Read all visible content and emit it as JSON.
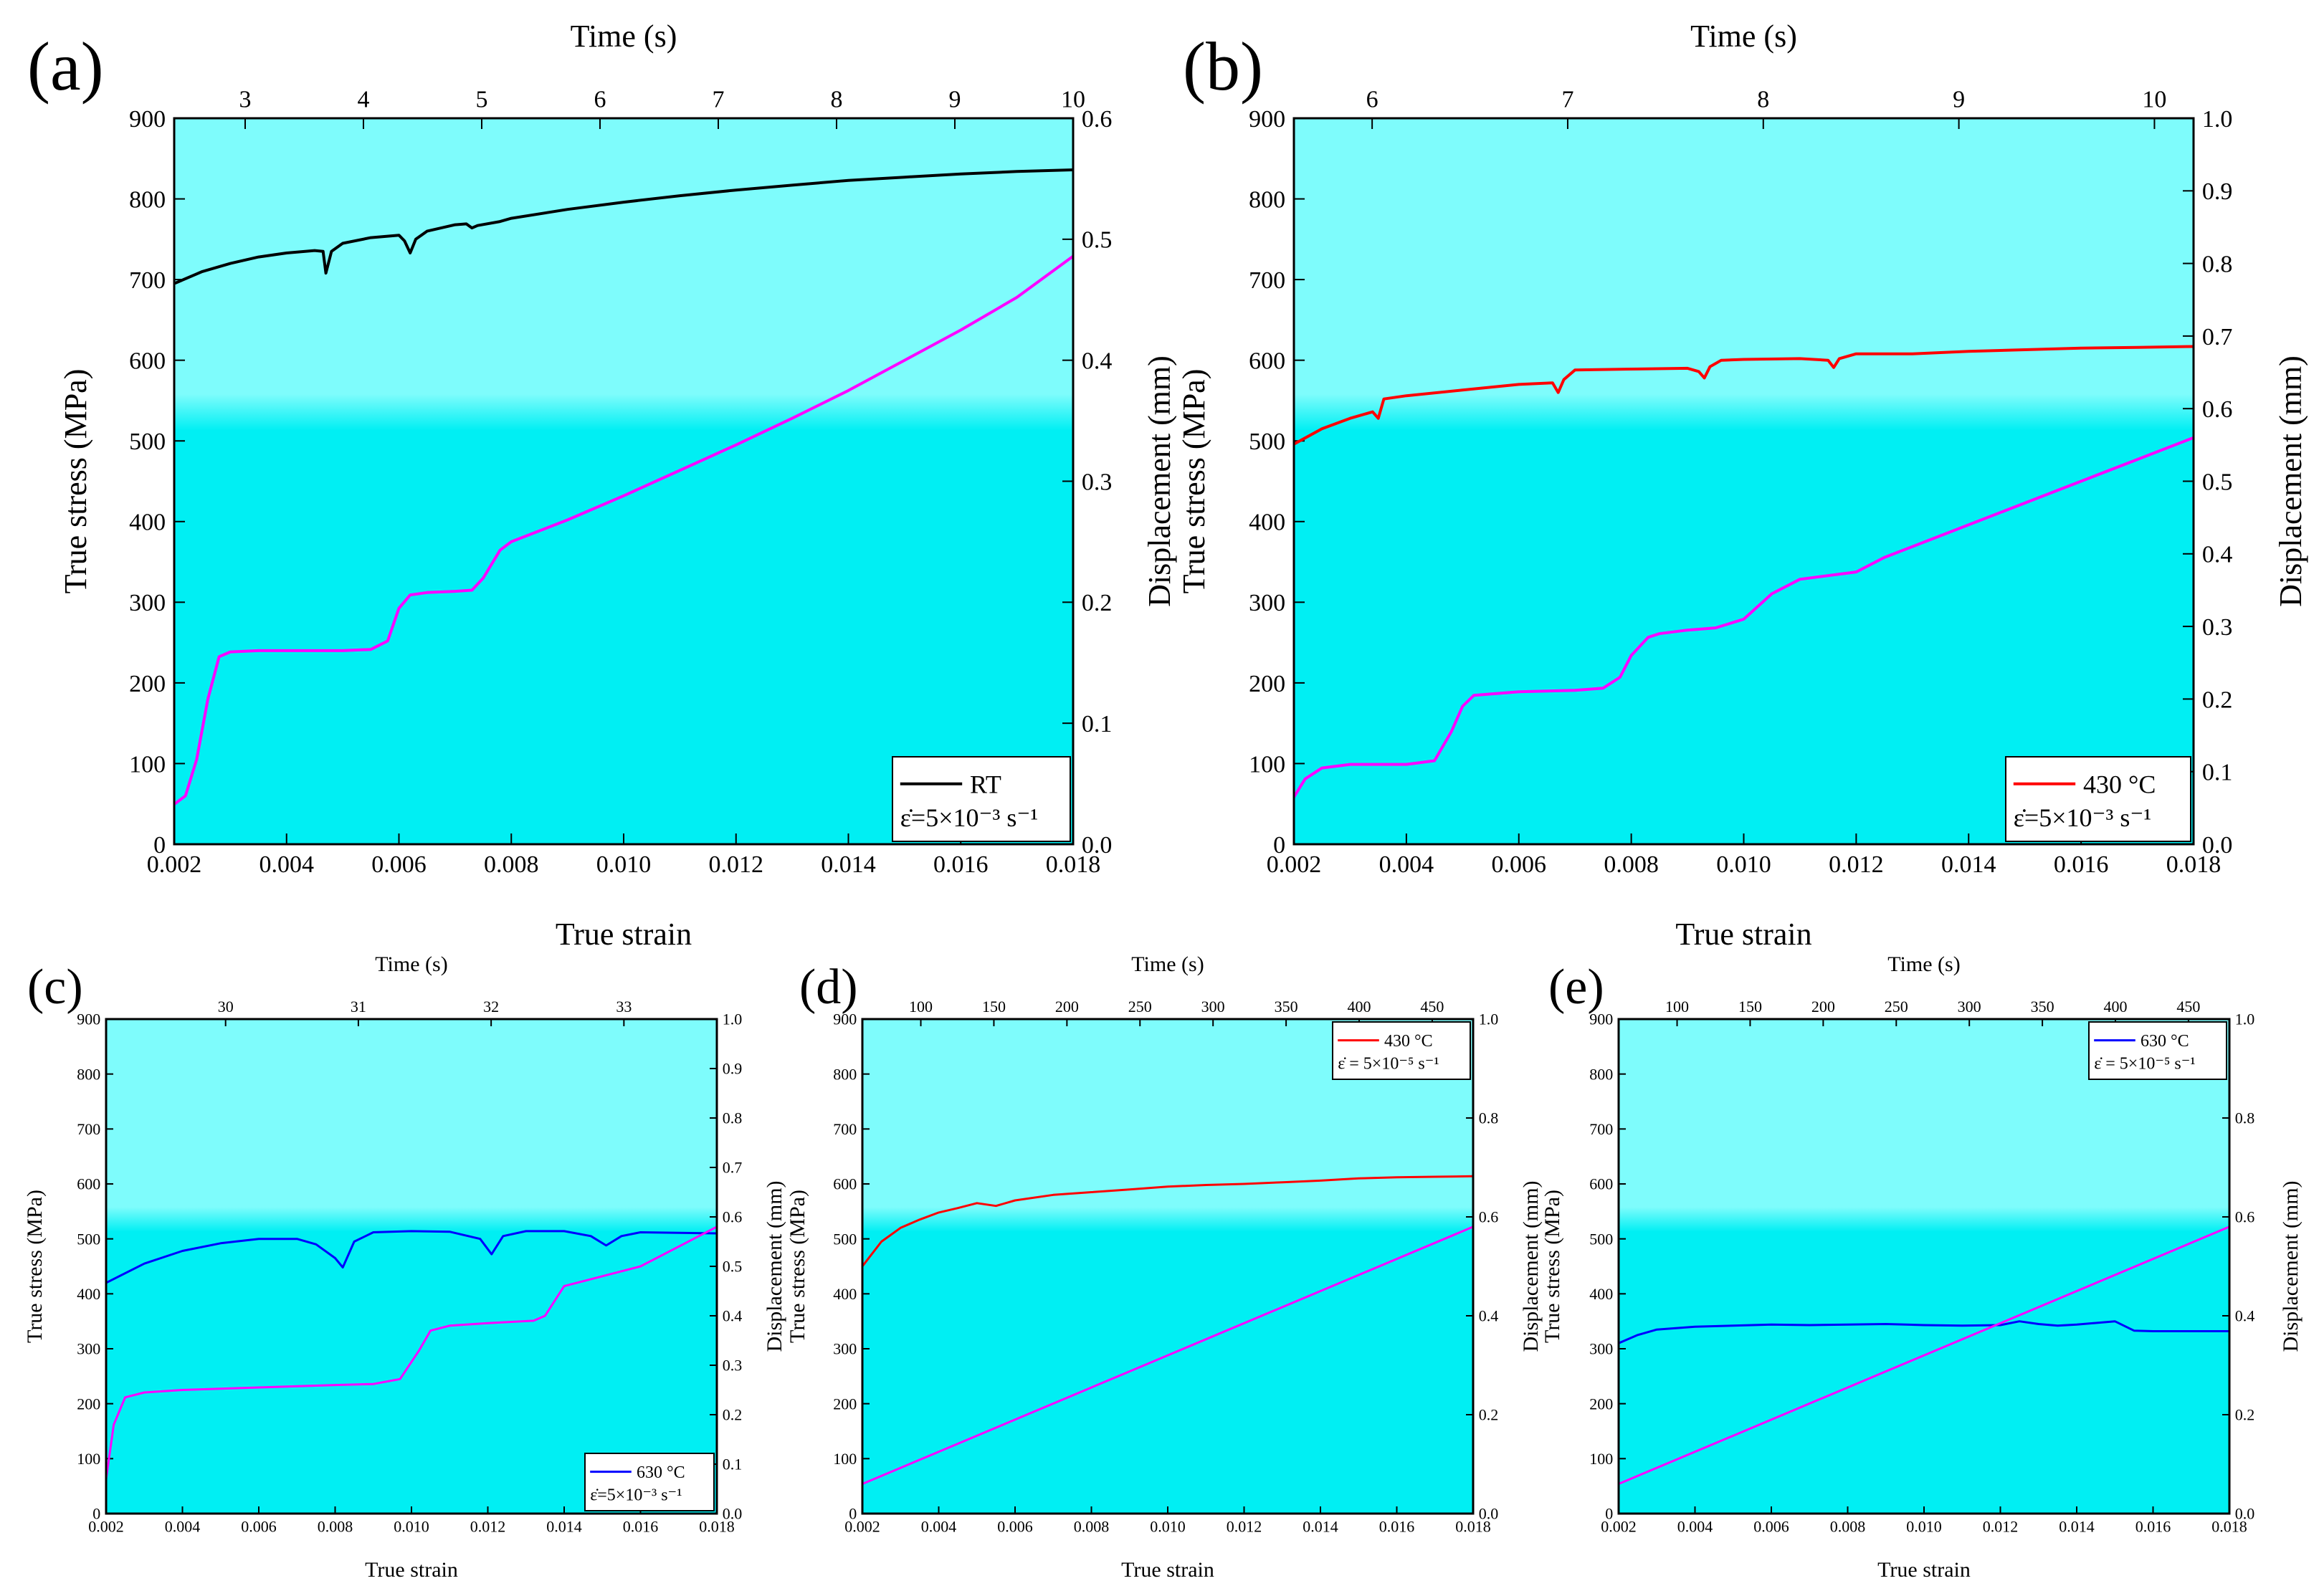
{
  "figure": {
    "colors": {
      "plot_bg_top": "#7efcfc",
      "plot_bg_bottom": "#00eff3",
      "displacement_line": "#ff00ff"
    }
  },
  "chart_data": [
    {
      "id": "a",
      "type": "line",
      "panel_label": "(a)",
      "xlabel": "True strain",
      "ylabel": "True stress (MPa)",
      "y2label": "Displacement (mm)",
      "top_xlabel": "Time (s)",
      "xlim": [
        0.002,
        0.018
      ],
      "ylim": [
        0,
        900
      ],
      "y2lim": [
        0,
        0.6
      ],
      "top_xlim": [
        2.4,
        10.0
      ],
      "xticks": [
        "0.002",
        "0.004",
        "0.006",
        "0.008",
        "0.010",
        "0.012",
        "0.014",
        "0.016",
        "0.018"
      ],
      "yticks": [
        "0",
        "100",
        "200",
        "300",
        "400",
        "500",
        "600",
        "700",
        "800",
        "900"
      ],
      "y2ticks": [
        "0.0",
        "0.1",
        "0.2",
        "0.3",
        "0.4",
        "0.5",
        "0.6"
      ],
      "top_ticks": [
        "3",
        "4",
        "5",
        "6",
        "7",
        "8",
        "9",
        "10"
      ],
      "legend": {
        "label": "RT",
        "rate": "ε̇=5×10⁻³ s⁻¹",
        "position": "bottom-right"
      },
      "series": [
        {
          "name": "RT",
          "axis": "left",
          "color": "#000000",
          "x": [
            0.002,
            0.0025,
            0.003,
            0.0035,
            0.004,
            0.0045,
            0.00465,
            0.0047,
            0.0048,
            0.005,
            0.0055,
            0.006,
            0.0061,
            0.0062,
            0.0063,
            0.0065,
            0.007,
            0.0072,
            0.0073,
            0.0074,
            0.0078,
            0.008,
            0.009,
            0.01,
            0.011,
            0.012,
            0.013,
            0.014,
            0.015,
            0.016,
            0.017,
            0.018
          ],
          "y": [
            695,
            710,
            720,
            728,
            733,
            736,
            735,
            708,
            735,
            745,
            752,
            755,
            748,
            733,
            750,
            760,
            768,
            769,
            764,
            767,
            772,
            776,
            787,
            796,
            804,
            811,
            817,
            823,
            827,
            831,
            834,
            836
          ]
        },
        {
          "name": "Displacement",
          "axis": "right",
          "color": "#ff00ff",
          "x": [
            0.002,
            0.0022,
            0.0024,
            0.0026,
            0.0028,
            0.003,
            0.0035,
            0.004,
            0.005,
            0.0055,
            0.0058,
            0.006,
            0.0062,
            0.0065,
            0.007,
            0.0073,
            0.0075,
            0.0078,
            0.008,
            0.009,
            0.01,
            0.011,
            0.012,
            0.013,
            0.014,
            0.015,
            0.016,
            0.017,
            0.018
          ],
          "y": [
            0.033,
            0.04,
            0.07,
            0.12,
            0.155,
            0.159,
            0.16,
            0.16,
            0.16,
            0.161,
            0.168,
            0.195,
            0.206,
            0.208,
            0.209,
            0.21,
            0.22,
            0.243,
            0.25,
            0.268,
            0.288,
            0.309,
            0.33,
            0.352,
            0.375,
            0.4,
            0.425,
            0.452,
            0.486
          ]
        }
      ]
    },
    {
      "id": "b",
      "type": "line",
      "panel_label": "(b)",
      "xlabel": "True strain",
      "ylabel": "True stress (MPa)",
      "y2label": "Displacement (mm)",
      "top_xlabel": "Time (s)",
      "xlim": [
        0.002,
        0.018
      ],
      "ylim": [
        0,
        900
      ],
      "y2lim": [
        0,
        1.0
      ],
      "top_xlim": [
        5.6,
        10.2
      ],
      "xticks": [
        "0.002",
        "0.004",
        "0.006",
        "0.008",
        "0.010",
        "0.012",
        "0.014",
        "0.016",
        "0.018"
      ],
      "yticks": [
        "0",
        "100",
        "200",
        "300",
        "400",
        "500",
        "600",
        "700",
        "800",
        "900"
      ],
      "y2ticks": [
        "0.0",
        "0.1",
        "0.2",
        "0.3",
        "0.4",
        "0.5",
        "0.6",
        "0.7",
        "0.8",
        "0.9",
        "1.0"
      ],
      "top_ticks": [
        "6",
        "7",
        "8",
        "9",
        "10"
      ],
      "legend": {
        "label": "430 °C",
        "rate": "ε̇=5×10⁻³ s⁻¹",
        "position": "bottom-right"
      },
      "series": [
        {
          "name": "430 °C",
          "axis": "left",
          "color": "#ff0000",
          "x": [
            0.002,
            0.0025,
            0.003,
            0.0034,
            0.0035,
            0.0036,
            0.004,
            0.005,
            0.006,
            0.0066,
            0.0067,
            0.0068,
            0.007,
            0.008,
            0.009,
            0.0092,
            0.0093,
            0.0094,
            0.0096,
            0.01,
            0.011,
            0.0115,
            0.0116,
            0.0117,
            0.012,
            0.013,
            0.014,
            0.015,
            0.016,
            0.017,
            0.018
          ],
          "y": [
            496,
            515,
            528,
            536,
            528,
            552,
            556,
            563,
            570,
            572,
            560,
            576,
            588,
            589,
            590,
            586,
            578,
            592,
            600,
            601,
            602,
            600,
            591,
            602,
            608,
            608,
            611,
            613,
            615,
            616,
            617
          ]
        },
        {
          "name": "Displacement",
          "axis": "right",
          "color": "#ff00ff",
          "x": [
            0.002,
            0.0022,
            0.0025,
            0.003,
            0.004,
            0.0045,
            0.0048,
            0.005,
            0.0052,
            0.006,
            0.007,
            0.0075,
            0.0078,
            0.008,
            0.0083,
            0.0085,
            0.009,
            0.0095,
            0.01,
            0.0105,
            0.011,
            0.012,
            0.0125,
            0.013,
            0.014,
            0.015,
            0.016,
            0.017,
            0.018
          ],
          "y": [
            0.065,
            0.09,
            0.105,
            0.11,
            0.11,
            0.115,
            0.155,
            0.19,
            0.205,
            0.21,
            0.212,
            0.215,
            0.23,
            0.26,
            0.285,
            0.29,
            0.295,
            0.298,
            0.31,
            0.345,
            0.365,
            0.375,
            0.395,
            0.41,
            0.44,
            0.47,
            0.5,
            0.53,
            0.56
          ]
        }
      ]
    },
    {
      "id": "c",
      "type": "line",
      "panel_label": "(c)",
      "xlabel": "True strain",
      "ylabel": "True stress (MPa)",
      "y2label": "Displacement (mm)",
      "top_xlabel": "Time (s)",
      "xlim": [
        0.002,
        0.018
      ],
      "ylim": [
        0,
        900
      ],
      "y2lim": [
        0,
        1.0
      ],
      "top_xlim": [
        29.1,
        33.7
      ],
      "xticks": [
        "0.002",
        "0.004",
        "0.006",
        "0.008",
        "0.010",
        "0.012",
        "0.014",
        "0.016",
        "0.018"
      ],
      "yticks": [
        "0",
        "100",
        "200",
        "300",
        "400",
        "500",
        "600",
        "700",
        "800",
        "900"
      ],
      "y2ticks": [
        "0.0",
        "0.1",
        "0.2",
        "0.3",
        "0.4",
        "0.5",
        "0.6",
        "0.7",
        "0.8",
        "0.9",
        "1.0"
      ],
      "top_ticks": [
        "30",
        "31",
        "32",
        "33"
      ],
      "legend": {
        "label": "630 °C",
        "rate": "ε̇=5×10⁻³ s⁻¹",
        "position": "bottom-right"
      },
      "series": [
        {
          "name": "630 °C",
          "axis": "left",
          "color": "#0000ff",
          "x": [
            0.002,
            0.003,
            0.004,
            0.005,
            0.006,
            0.007,
            0.0075,
            0.008,
            0.0082,
            0.0085,
            0.009,
            0.01,
            0.011,
            0.0118,
            0.0121,
            0.0124,
            0.013,
            0.014,
            0.0147,
            0.0151,
            0.0155,
            0.016,
            0.017,
            0.018
          ],
          "y": [
            420,
            455,
            478,
            492,
            500,
            500,
            490,
            465,
            448,
            495,
            512,
            514,
            513,
            500,
            472,
            505,
            514,
            514,
            505,
            488,
            505,
            512,
            511,
            510
          ]
        },
        {
          "name": "Displacement",
          "axis": "right",
          "color": "#ff00ff",
          "x": [
            0.002,
            0.0022,
            0.0025,
            0.003,
            0.004,
            0.006,
            0.008,
            0.009,
            0.0097,
            0.0102,
            0.0105,
            0.011,
            0.012,
            0.0132,
            0.0135,
            0.014,
            0.015,
            0.016,
            0.017,
            0.018
          ],
          "y": [
            0.07,
            0.18,
            0.235,
            0.245,
            0.25,
            0.255,
            0.26,
            0.262,
            0.272,
            0.33,
            0.37,
            0.38,
            0.385,
            0.39,
            0.4,
            0.46,
            0.48,
            0.5,
            0.54,
            0.58
          ]
        }
      ]
    },
    {
      "id": "d",
      "type": "line",
      "panel_label": "(d)",
      "xlabel": "True strain",
      "ylabel": "True stress (MPa)",
      "y2label": "Displacement (mm)",
      "top_xlabel": "Time (s)",
      "xlim": [
        0.002,
        0.018
      ],
      "ylim": [
        0,
        900
      ],
      "y2lim": [
        0,
        1.0
      ],
      "top_xlim": [
        60,
        478
      ],
      "xticks": [
        "0.002",
        "0.004",
        "0.006",
        "0.008",
        "0.010",
        "0.012",
        "0.014",
        "0.016",
        "0.018"
      ],
      "yticks": [
        "0",
        "100",
        "200",
        "300",
        "400",
        "500",
        "600",
        "700",
        "800",
        "900"
      ],
      "y2ticks": [
        "0.0",
        "0.2",
        "0.4",
        "0.6",
        "0.8",
        "1.0"
      ],
      "top_ticks": [
        "100",
        "150",
        "200",
        "250",
        "300",
        "350",
        "400",
        "450"
      ],
      "legend": {
        "label": "430 °C",
        "rate": "ε̇ = 5×10⁻⁵ s⁻¹",
        "position": "top-right"
      },
      "series": [
        {
          "name": "430 °C",
          "axis": "left",
          "color": "#ff0000",
          "x": [
            0.002,
            0.0025,
            0.003,
            0.0035,
            0.004,
            0.0045,
            0.005,
            0.0055,
            0.006,
            0.007,
            0.008,
            0.009,
            0.01,
            0.011,
            0.012,
            0.013,
            0.014,
            0.015,
            0.016,
            0.017,
            0.018
          ],
          "y": [
            450,
            495,
            520,
            535,
            548,
            556,
            565,
            560,
            570,
            580,
            585,
            590,
            595,
            598,
            600,
            603,
            606,
            610,
            612,
            613,
            614
          ]
        },
        {
          "name": "Displacement",
          "axis": "right",
          "color": "#ff00ff",
          "x": [
            0.002,
            0.018
          ],
          "y": [
            0.06,
            0.58
          ]
        }
      ]
    },
    {
      "id": "e",
      "type": "line",
      "panel_label": "(e)",
      "xlabel": "True strain",
      "ylabel": "True stress (MPa)",
      "y2label": "Displacement (mm)",
      "top_xlabel": "Time (s)",
      "xlim": [
        0.002,
        0.018
      ],
      "ylim": [
        0,
        900
      ],
      "y2lim": [
        0,
        1.0
      ],
      "top_xlim": [
        60,
        478
      ],
      "xticks": [
        "0.002",
        "0.004",
        "0.006",
        "0.008",
        "0.010",
        "0.012",
        "0.014",
        "0.016",
        "0.018"
      ],
      "yticks": [
        "0",
        "100",
        "200",
        "300",
        "400",
        "500",
        "600",
        "700",
        "800",
        "900"
      ],
      "y2ticks": [
        "0.0",
        "0.2",
        "0.4",
        "0.6",
        "0.8",
        "1.0"
      ],
      "top_ticks": [
        "100",
        "150",
        "200",
        "250",
        "300",
        "350",
        "400",
        "450"
      ],
      "legend": {
        "label": "630 °C",
        "rate": "ε̇ = 5×10⁻⁵ s⁻¹",
        "position": "top-right"
      },
      "series": [
        {
          "name": "630 °C",
          "axis": "left",
          "color": "#0000ff",
          "x": [
            0.002,
            0.0025,
            0.003,
            0.004,
            0.005,
            0.006,
            0.007,
            0.008,
            0.009,
            0.01,
            0.011,
            0.012,
            0.0125,
            0.013,
            0.0135,
            0.014,
            0.015,
            0.0155,
            0.016,
            0.017,
            0.018
          ],
          "y": [
            310,
            325,
            335,
            340,
            342,
            344,
            343,
            344,
            345,
            343,
            342,
            343,
            350,
            345,
            342,
            344,
            350,
            333,
            332,
            332,
            332
          ]
        },
        {
          "name": "Displacement",
          "axis": "right",
          "color": "#ff00ff",
          "x": [
            0.002,
            0.018
          ],
          "y": [
            0.06,
            0.58
          ]
        }
      ]
    }
  ]
}
